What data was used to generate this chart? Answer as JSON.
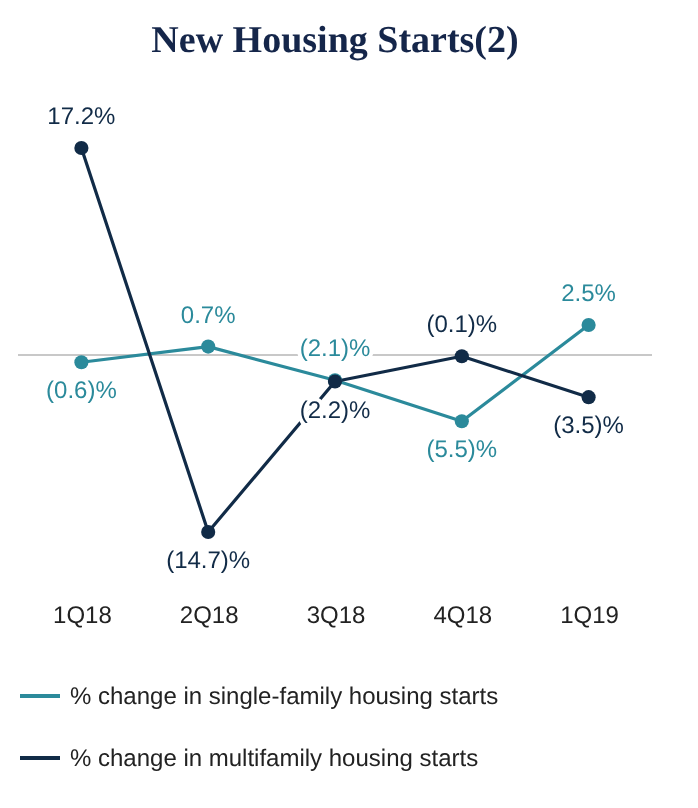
{
  "chart_data": {
    "type": "line",
    "title": "New Housing Starts(2)",
    "categories": [
      "1Q18",
      "2Q18",
      "3Q18",
      "4Q18",
      "1Q19"
    ],
    "series": [
      {
        "name": "% change in single-family housing starts",
        "color": "#2b8a9b",
        "values": [
          -0.6,
          0.7,
          -2.1,
          -5.5,
          2.5
        ],
        "value_labels": [
          "(0.6)%",
          "0.7%",
          "(2.1)%",
          "(5.5)%",
          "2.5%"
        ]
      },
      {
        "name": "% change in multifamily housing starts",
        "color": "#112b47",
        "values": [
          17.2,
          -14.7,
          -2.2,
          -0.1,
          -3.5
        ],
        "value_labels": [
          "17.2%",
          "(14.7)%",
          "(2.2)%",
          "(0.1)%",
          "(3.5)%"
        ]
      }
    ],
    "ref_lines": [
      {
        "axis": "y",
        "value": 0,
        "color": "#c8c8c8"
      }
    ],
    "marker": "circle",
    "line_style": "solid",
    "grid": false,
    "legend": "bottom"
  }
}
